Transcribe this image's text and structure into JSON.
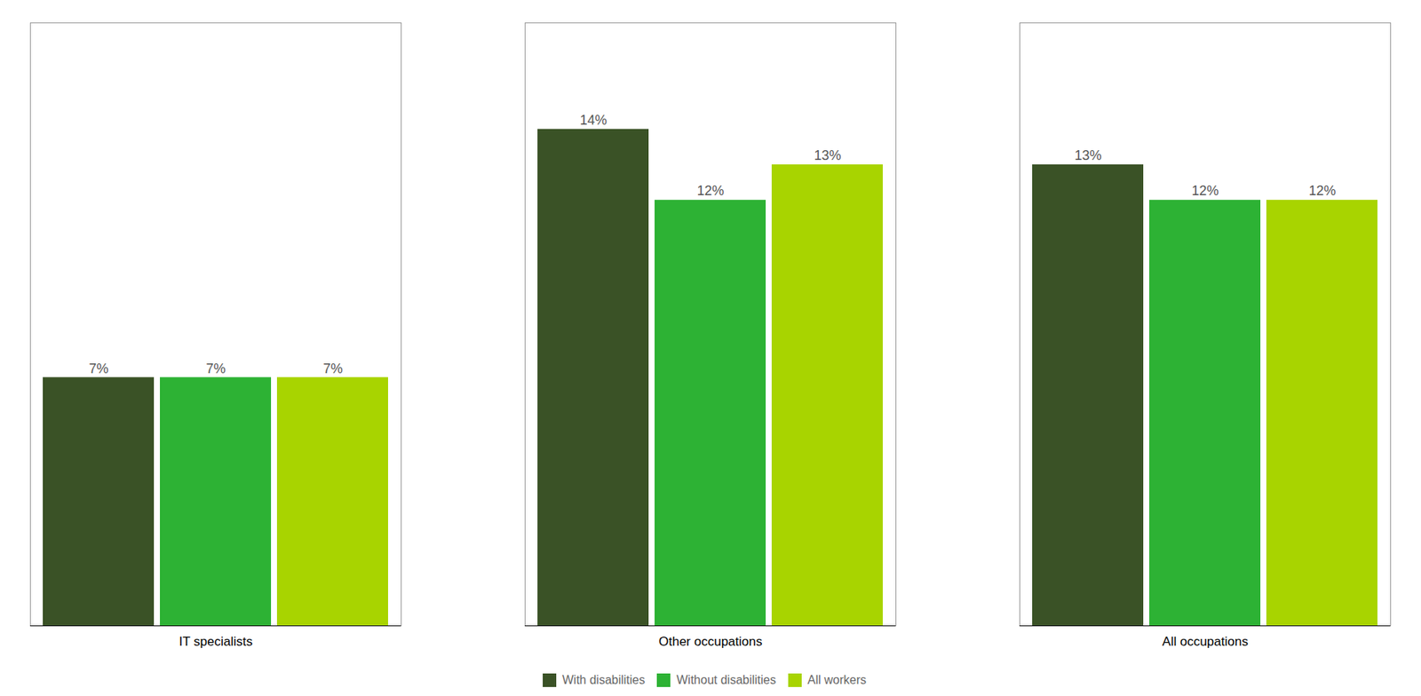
{
  "chart_data": {
    "type": "bar",
    "categories": [
      "IT specialists",
      "Other occupations",
      "All occupations"
    ],
    "series": [
      {
        "name": "With disabilities",
        "color": "#3a5226",
        "values": [
          7,
          14,
          13
        ],
        "value_labels": [
          "7%",
          "14%",
          "13%"
        ]
      },
      {
        "name": "Without disabilities",
        "color": "#2db234",
        "values": [
          7,
          12,
          12
        ],
        "value_labels": [
          "7%",
          "12%",
          "12%"
        ]
      },
      {
        "name": "All workers",
        "color": "#a8d400",
        "values": [
          7,
          13,
          12
        ],
        "value_labels": [
          "7%",
          "13%",
          "12%"
        ]
      }
    ],
    "ylim": [
      0,
      17
    ],
    "grid": false,
    "legend": "bottom",
    "data_labels": true,
    "tick_labels": "x"
  }
}
